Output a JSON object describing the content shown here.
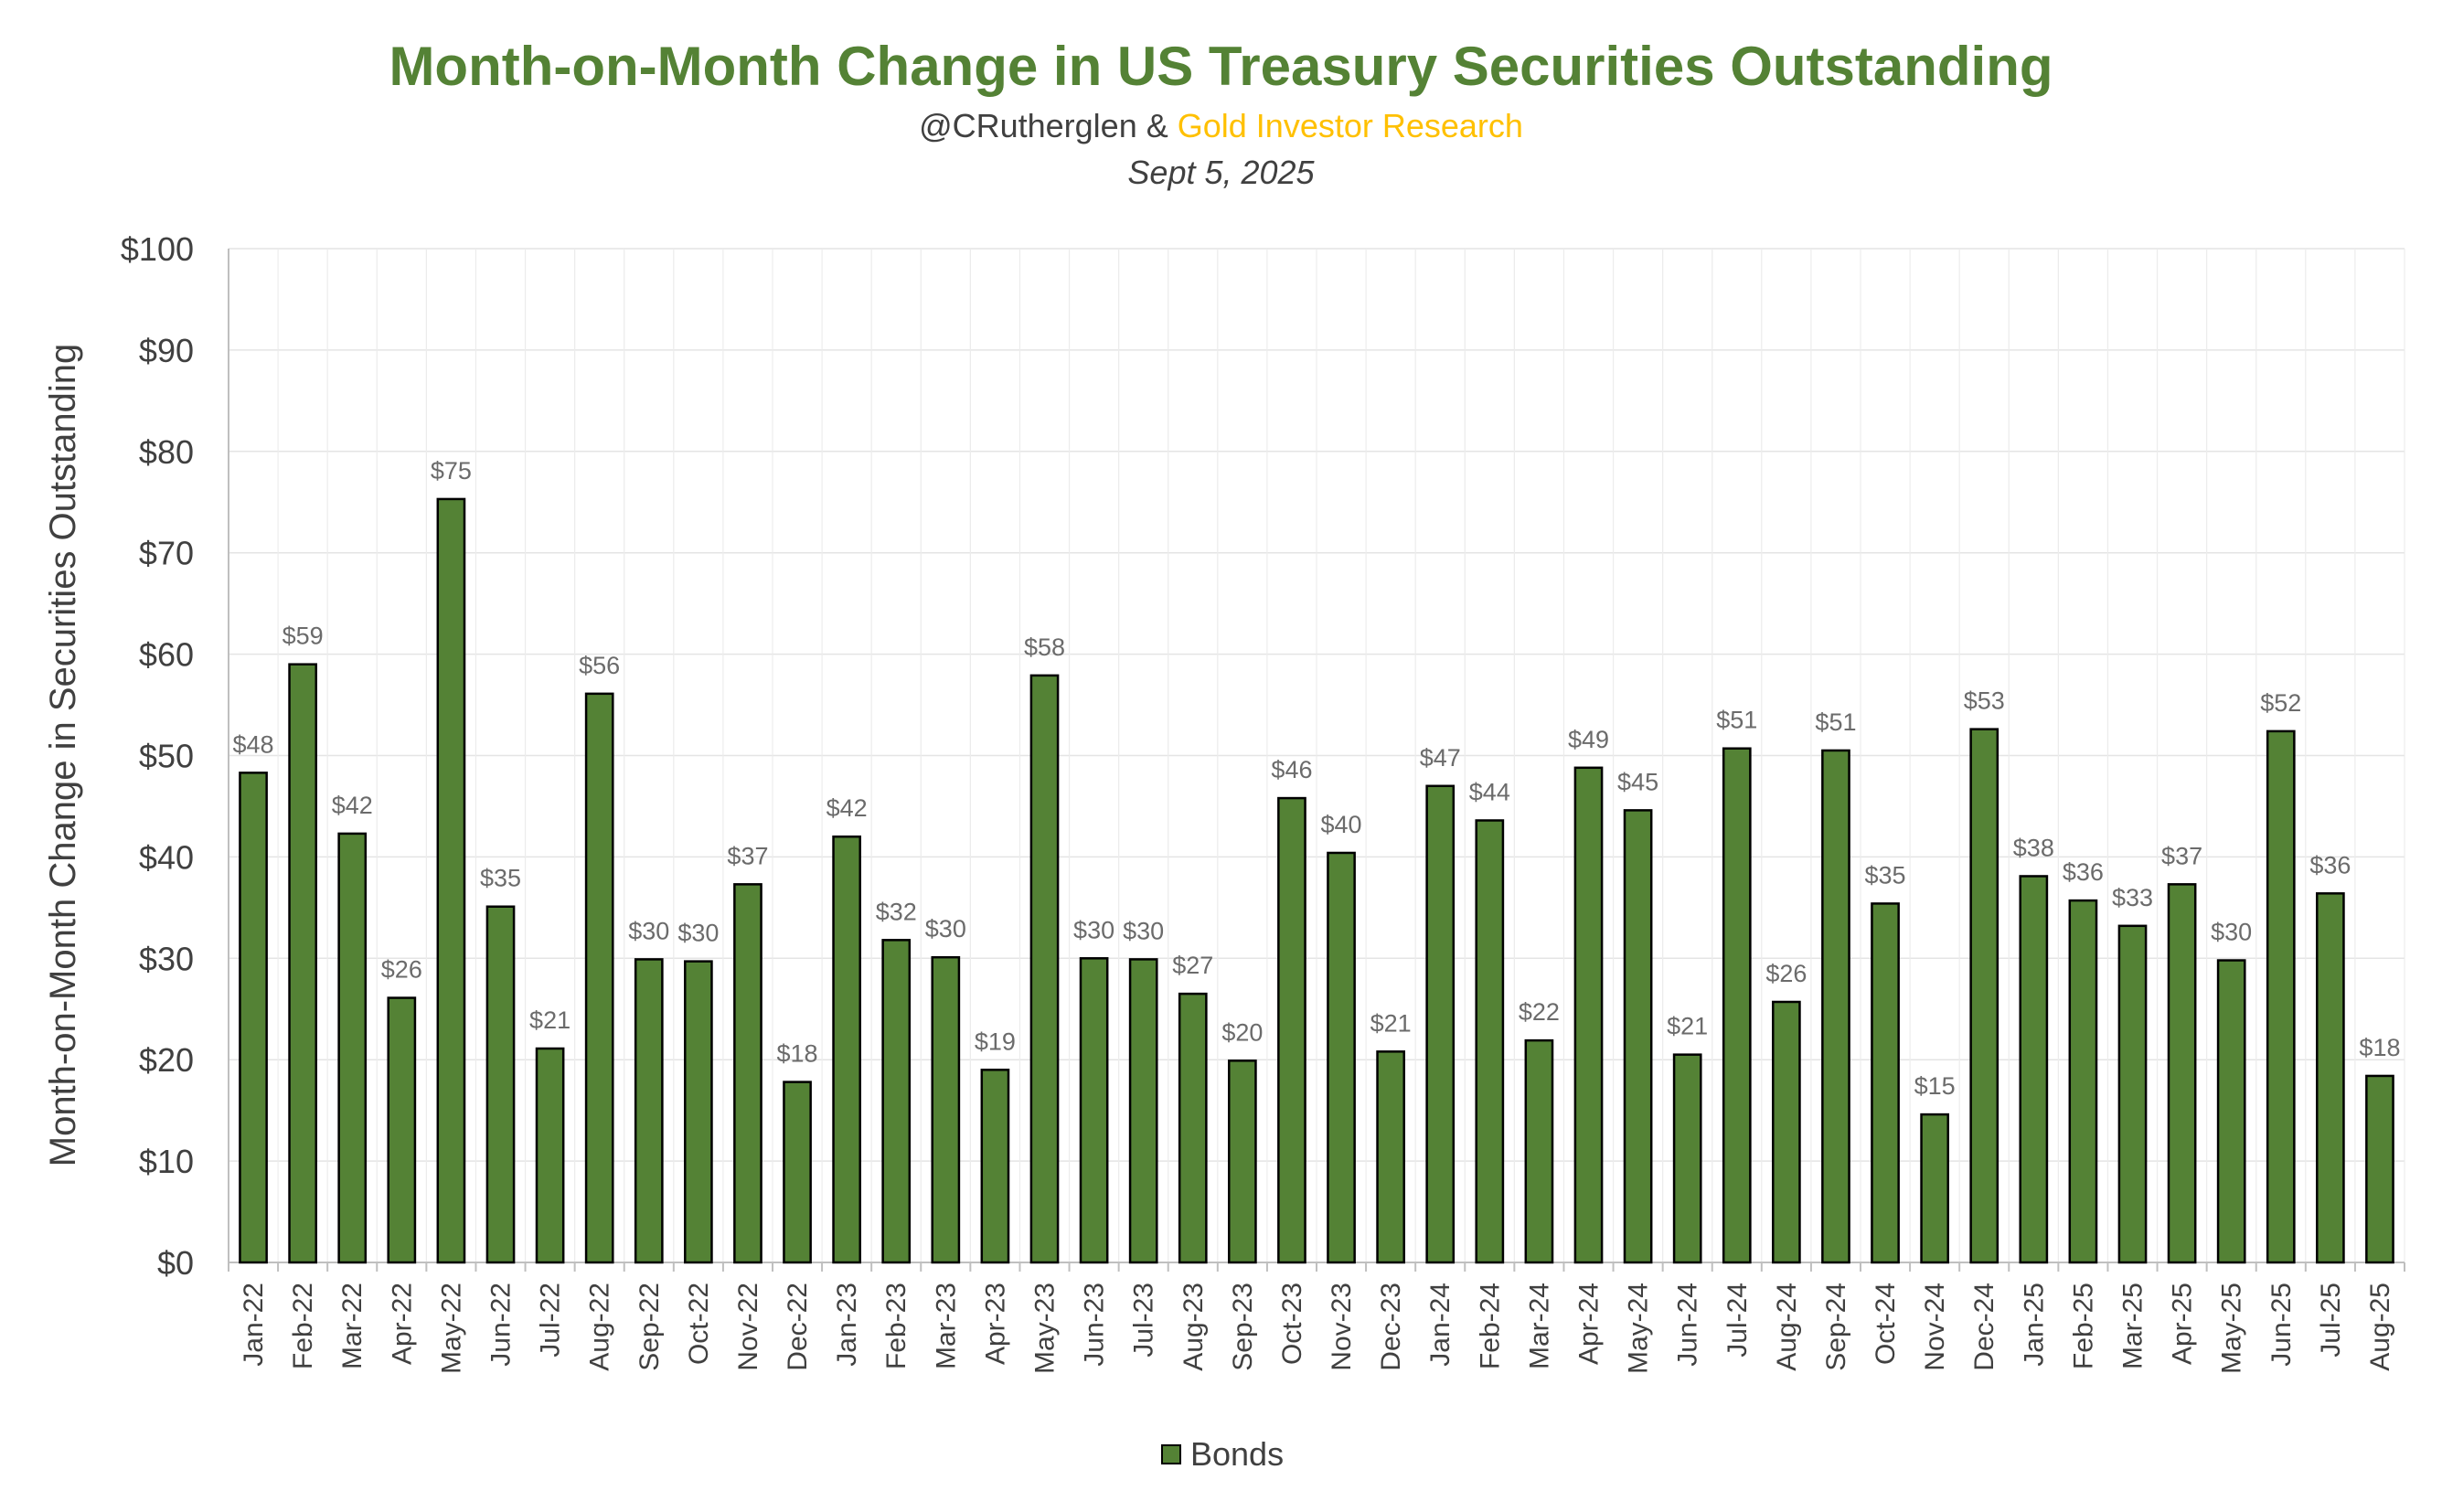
{
  "chart_data": {
    "type": "bar",
    "title": "Month-on-Month Change in US Treasury Securities Outstanding",
    "subtitle_author": "@CRutherglen &",
    "subtitle_source": "Gold Investor Research",
    "date": "Sept 5, 2025",
    "ylabel": "Month-on-Month Change in Securities Outstanding",
    "xlabel": "",
    "ylim": [
      0,
      100
    ],
    "yticks": [
      0,
      10,
      20,
      30,
      40,
      50,
      60,
      70,
      80,
      90,
      100
    ],
    "ytick_labels": [
      "$0",
      "$10",
      "$20",
      "$30",
      "$40",
      "$50",
      "$60",
      "$70",
      "$80",
      "$90",
      "$100"
    ],
    "grid": true,
    "legend_position": "bottom",
    "categories": [
      "Jan-22",
      "Feb-22",
      "Mar-22",
      "Apr-22",
      "May-22",
      "Jun-22",
      "Jul-22",
      "Aug-22",
      "Sep-22",
      "Oct-22",
      "Nov-22",
      "Dec-22",
      "Jan-23",
      "Feb-23",
      "Mar-23",
      "Apr-23",
      "May-23",
      "Jun-23",
      "Jul-23",
      "Aug-23",
      "Sep-23",
      "Oct-23",
      "Nov-23",
      "Dec-23",
      "Jan-24",
      "Feb-24",
      "Mar-24",
      "Apr-24",
      "May-24",
      "Jun-24",
      "Jul-24",
      "Aug-24",
      "Sep-24",
      "Oct-24",
      "Nov-24",
      "Dec-24",
      "Jan-25",
      "Feb-25",
      "Mar-25",
      "Apr-25",
      "May-25",
      "Jun-25",
      "Jul-25",
      "Aug-25"
    ],
    "series": [
      {
        "name": "Bonds",
        "color": "#548235",
        "values": [
          48.3,
          59.0,
          42.3,
          26.1,
          75.3,
          35.1,
          21.1,
          56.1,
          29.9,
          29.7,
          37.3,
          17.8,
          42.0,
          31.8,
          30.1,
          19.0,
          57.9,
          30.0,
          29.9,
          26.5,
          19.9,
          45.8,
          40.4,
          20.8,
          47.0,
          43.6,
          21.9,
          48.8,
          44.6,
          20.5,
          50.7,
          25.7,
          50.5,
          35.4,
          14.6,
          52.6,
          38.1,
          35.7,
          33.2,
          37.3,
          29.8,
          52.4,
          36.4,
          18.4
        ],
        "labels": [
          "$48",
          "$59",
          "$42",
          "$26",
          "$75",
          "$35",
          "$21",
          "$56",
          "$30",
          "$30",
          "$37",
          "$18",
          "$42",
          "$32",
          "$30",
          "$19",
          "$58",
          "$30",
          "$30",
          "$27",
          "$20",
          "$46",
          "$40",
          "$21",
          "$47",
          "$44",
          "$22",
          "$49",
          "$45",
          "$21",
          "$51",
          "$26",
          "$51",
          "$35",
          "$15",
          "$53",
          "$38",
          "$36",
          "$33",
          "$37",
          "$30",
          "$52",
          "$36",
          "$18"
        ]
      }
    ]
  }
}
